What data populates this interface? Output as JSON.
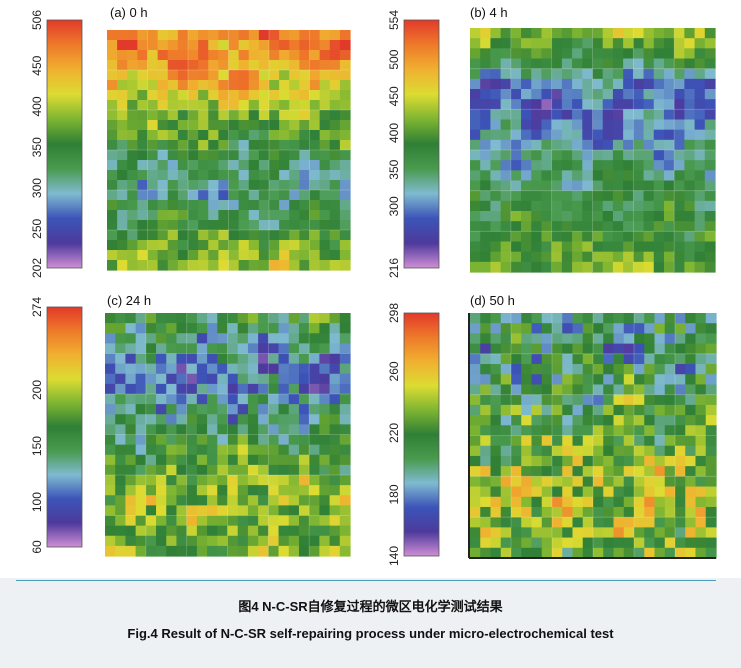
{
  "figure": {
    "caption_cn": "图4   N-C-SR自修复过程的微区电化学测试结果",
    "caption_en": "Fig.4   Result of N-C-SR self-repairing process under micro-electrochemical test"
  },
  "colormap": {
    "name": "rainbow",
    "stops": [
      "#cf8fd6",
      "#4d3a9c",
      "#3c54b8",
      "#7fbad0",
      "#4a9a4e",
      "#2f7f36",
      "#7eb532",
      "#dcdc32",
      "#f0b030",
      "#ee7a2a",
      "#e23a2a"
    ]
  },
  "chart_data": [
    {
      "type": "heatmap",
      "title": "(a) 0 h",
      "colorbar": {
        "min": 202,
        "max": 506,
        "tick_labels": [
          "202",
          "250",
          "300",
          "350",
          "400",
          "450",
          "506"
        ],
        "tick_values": [
          202,
          250,
          300,
          350,
          400,
          450,
          506
        ]
      },
      "value_profile_top_to_bottom": [
        470,
        455,
        430,
        395,
        360,
        325,
        300,
        330,
        370,
        395
      ],
      "summary": "high values (orange/yellow) at the top, low values (blue) band in the middle, green/yellow at the bottom"
    },
    {
      "type": "heatmap",
      "title": "(b) 4 h",
      "colorbar": {
        "min": 216,
        "max": 554,
        "tick_labels": [
          "216",
          "300",
          "350",
          "400",
          "450",
          "500",
          "554"
        ],
        "tick_values": [
          216,
          300,
          350,
          400,
          450,
          500,
          554
        ]
      },
      "value_profile_top_to_bottom": [
        420,
        375,
        300,
        285,
        310,
        340,
        355,
        365,
        395,
        410
      ],
      "summary": "low values (blue/purple) in the upper-middle band, green in the middle, yellow at the bottom"
    },
    {
      "type": "heatmap",
      "title": "(c) 24 h",
      "colorbar": {
        "min": 60,
        "max": 274,
        "tick_labels": [
          "60",
          "100",
          "150",
          "200",
          "274"
        ],
        "tick_values": [
          60,
          100,
          150,
          200,
          274
        ]
      },
      "value_profile_top_to_bottom": [
        160,
        130,
        110,
        115,
        140,
        165,
        180,
        190,
        185,
        180
      ],
      "summary": "mixed blue and green upper half, yellow/orange patches in the lower half"
    },
    {
      "type": "heatmap",
      "title": "(d) 50 h",
      "colorbar": {
        "min": 140,
        "max": 298,
        "tick_labels": [
          "140",
          "180",
          "220",
          "260",
          "298"
        ],
        "tick_values": [
          140,
          180,
          220,
          260,
          298
        ]
      },
      "value_profile_top_to_bottom": [
        200,
        195,
        205,
        215,
        220,
        230,
        238,
        240,
        235,
        230
      ],
      "summary": "fine-grained mixture of blue, green and yellow with scattered orange/red spots"
    }
  ]
}
